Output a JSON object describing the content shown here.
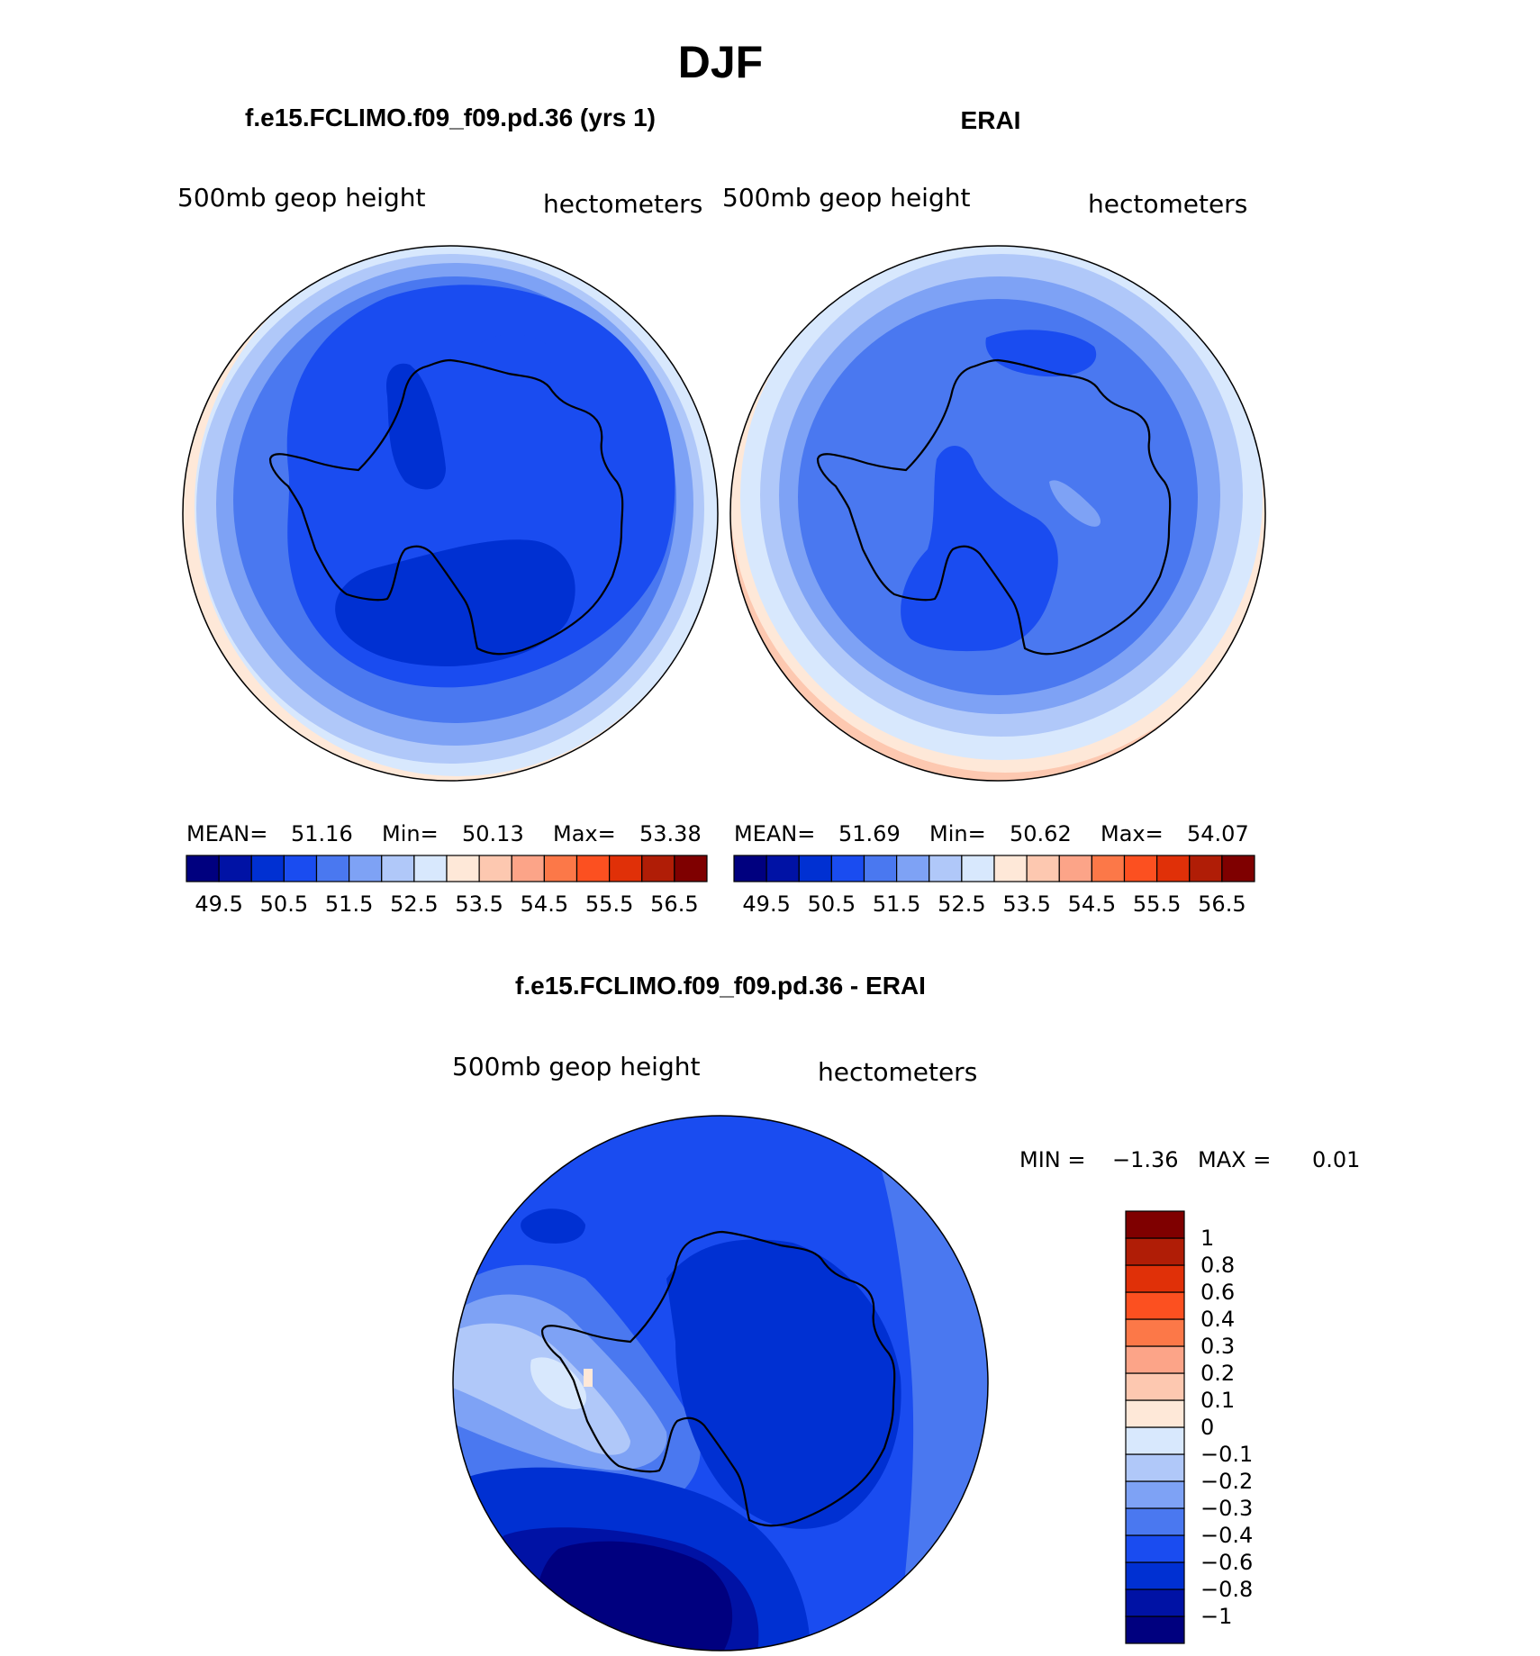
{
  "page": {
    "title": "DJF"
  },
  "colors": {
    "abs_scale": [
      "#00007f",
      "#0012a5",
      "#0030d2",
      "#1a4cf0",
      "#4a78f0",
      "#7ea2f5",
      "#b0c8f9",
      "#d8e8fd",
      "#fee8d8",
      "#fdc8b0",
      "#fca488",
      "#fc7848",
      "#fc5020",
      "#e03008",
      "#b01d06",
      "#7f0000"
    ],
    "diff_scale": [
      "#00007f",
      "#0012a5",
      "#0030d2",
      "#1a4cf0",
      "#4a78f0",
      "#7ea2f5",
      "#b0c8f9",
      "#d8e8fd",
      "#fee8d8",
      "#fdc8b0",
      "#fca488",
      "#fc7848",
      "#fc5020",
      "#e03008",
      "#b01d06",
      "#7f0000"
    ]
  },
  "chart_data": [
    {
      "type": "heatmap",
      "panel": "model",
      "title": "f.e15.FCLIMO.f09_f09.pd.36 (yrs 1)",
      "left_label": "500mb  geop  height",
      "right_label": "hectometers",
      "stats": {
        "mean_label": "MEAN=",
        "mean": "51.16",
        "min_label": "Min=",
        "min": "50.13",
        "max_label": "Max=",
        "max": "53.38"
      },
      "colorbar_ticks": [
        "49.5",
        "50.5",
        "51.5",
        "52.5",
        "53.5",
        "54.5",
        "55.5",
        "56.5"
      ],
      "projection": "south polar stereographic"
    },
    {
      "type": "heatmap",
      "panel": "obs",
      "title": "ERAI",
      "left_label": "500mb  geop  height",
      "right_label": "hectometers",
      "stats": {
        "mean_label": "MEAN=",
        "mean": "51.69",
        "min_label": "Min=",
        "min": "50.62",
        "max_label": "Max=",
        "max": "54.07"
      },
      "colorbar_ticks": [
        "49.5",
        "50.5",
        "51.5",
        "52.5",
        "53.5",
        "54.5",
        "55.5",
        "56.5"
      ],
      "projection": "south polar stereographic"
    },
    {
      "type": "heatmap",
      "panel": "difference",
      "title": "f.e15.FCLIMO.f09_f09.pd.36 - ERAI",
      "left_label": "500mb  geop  height",
      "right_label": "hectometers",
      "stats": {
        "min_label": "MIN =",
        "min": "−1.36",
        "max_label": "MAX =",
        "max": "0.01"
      },
      "colorbar_ticks": [
        "1",
        "0.8",
        "0.6",
        "0.4",
        "0.3",
        "0.2",
        "0.1",
        "0",
        "−0.1",
        "−0.2",
        "−0.3",
        "−0.4",
        "−0.6",
        "−0.8",
        "−1"
      ],
      "projection": "south polar stereographic"
    }
  ]
}
